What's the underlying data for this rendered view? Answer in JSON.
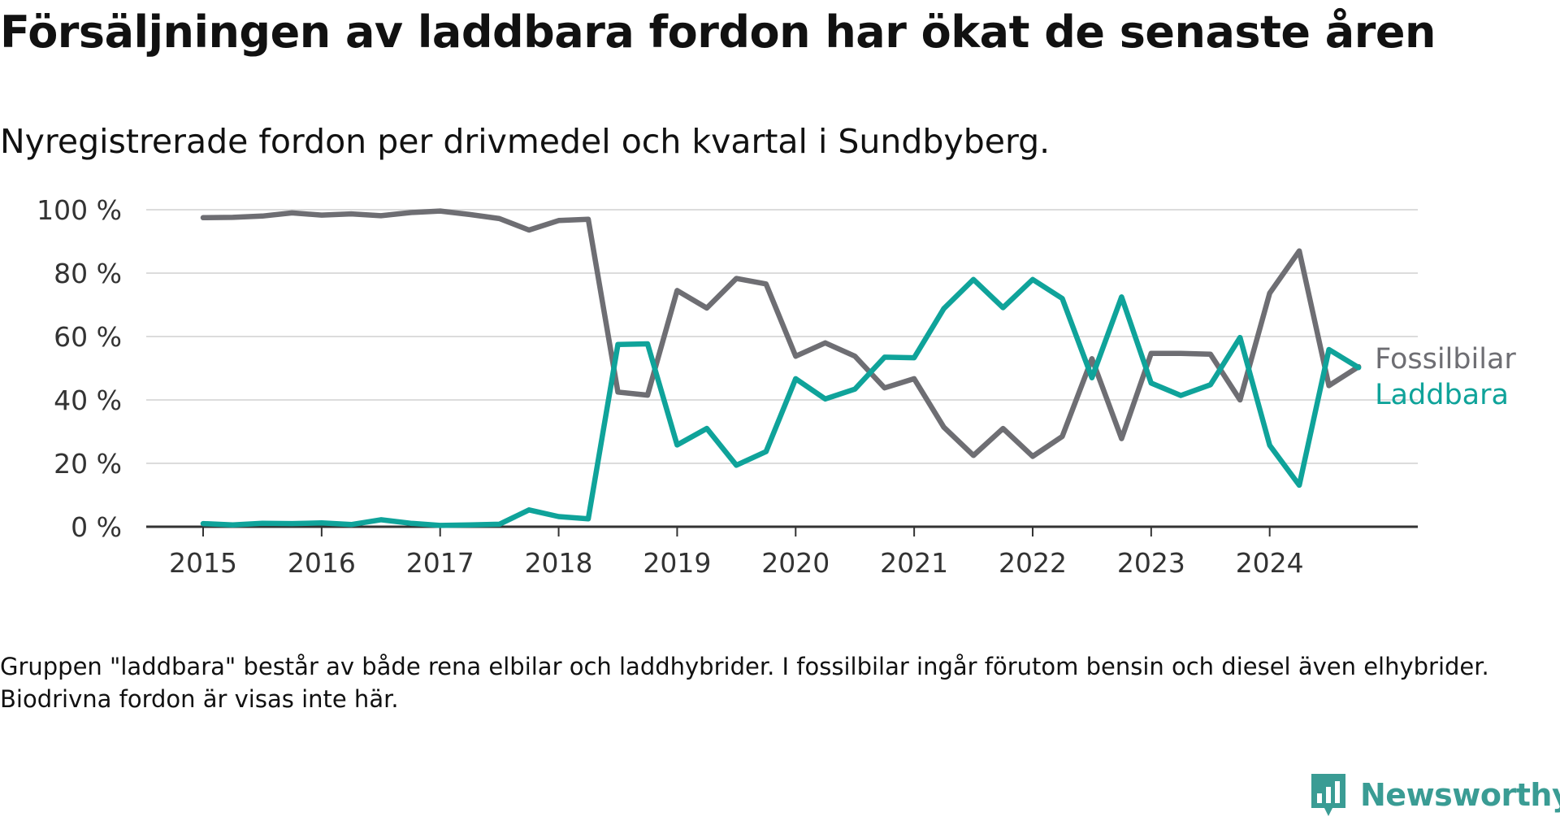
{
  "title": "Försäljningen av laddbara fordon har ökat de senaste åren",
  "subtitle": "Nyregistrerade fordon per drivmedel och kvartal i Sundbyberg.",
  "note": "Gruppen \"laddbara\" består av både rena elbilar och laddhybrider. I fossilbilar ingår förutom bensin och diesel även elhybrider. Biodrivna fordon är visas inte här.",
  "brand": "Newsworthy",
  "colors": {
    "fossil": "#6e6e73",
    "laddbara": "#0fa39a",
    "grid": "#dcdcdc",
    "axis": "#333333",
    "brand": "#3a9c94"
  },
  "chart_data": {
    "type": "line",
    "title": "Försäljningen av laddbara fordon har ökat de senaste åren",
    "xlabel": "",
    "ylabel": "",
    "ylim": [
      0,
      100
    ],
    "yticks": [
      0,
      20,
      40,
      60,
      80,
      100
    ],
    "ytick_labels": [
      "0 %",
      "20 %",
      "40 %",
      "60 %",
      "80 %",
      "100 %"
    ],
    "xlim": [
      2014.52,
      2025.25
    ],
    "xticks": [
      2015,
      2016,
      2017,
      2018,
      2019,
      2020,
      2021,
      2022,
      2023,
      2024
    ],
    "xtick_labels": [
      "2015",
      "2016",
      "2017",
      "2018",
      "2019",
      "2020",
      "2021",
      "2022",
      "2023",
      "2024"
    ],
    "grid": true,
    "x": [
      2015.0,
      2015.25,
      2015.5,
      2015.75,
      2016.0,
      2016.25,
      2016.5,
      2016.75,
      2017.0,
      2017.25,
      2017.5,
      2017.75,
      2018.0,
      2018.25,
      2018.5,
      2018.75,
      2019.0,
      2019.25,
      2019.5,
      2019.75,
      2020.0,
      2020.25,
      2020.5,
      2020.75,
      2021.0,
      2021.25,
      2021.5,
      2021.75,
      2022.0,
      2022.25,
      2022.5,
      2022.75,
      2023.0,
      2023.25,
      2023.5,
      2023.75,
      2024.0,
      2024.25,
      2024.5,
      2024.75
    ],
    "series": [
      {
        "name": "Fossilbilar",
        "color": "#6e6e73",
        "values": [
          97.5,
          97.6,
          98.0,
          99.0,
          98.3,
          98.7,
          98.1,
          99.1,
          99.6,
          98.5,
          97.2,
          93.6,
          96.6,
          97.0,
          42.5,
          41.5,
          74.5,
          69.0,
          78.3,
          76.6,
          53.8,
          58.0,
          53.8,
          43.8,
          46.7,
          31.4,
          22.5,
          31.0,
          22.2,
          28.5,
          53.0,
          27.8,
          54.7,
          54.7,
          54.4,
          40.0,
          73.7,
          87.0,
          44.5,
          50.5
        ]
      },
      {
        "name": "Laddbara",
        "color": "#0fa39a",
        "values": [
          1.0,
          0.6,
          1.1,
          1.0,
          1.2,
          0.7,
          2.2,
          1.1,
          0.4,
          0.6,
          0.8,
          5.3,
          3.2,
          2.5,
          57.5,
          57.7,
          25.8,
          31.0,
          19.4,
          23.7,
          46.7,
          40.3,
          43.4,
          53.5,
          53.3,
          68.8,
          78.0,
          69.1,
          78.0,
          72.0,
          47.0,
          72.5,
          45.3,
          41.4,
          44.8,
          59.7,
          25.7,
          13.1,
          55.9,
          50.2
        ]
      }
    ],
    "legend": "right-end"
  }
}
